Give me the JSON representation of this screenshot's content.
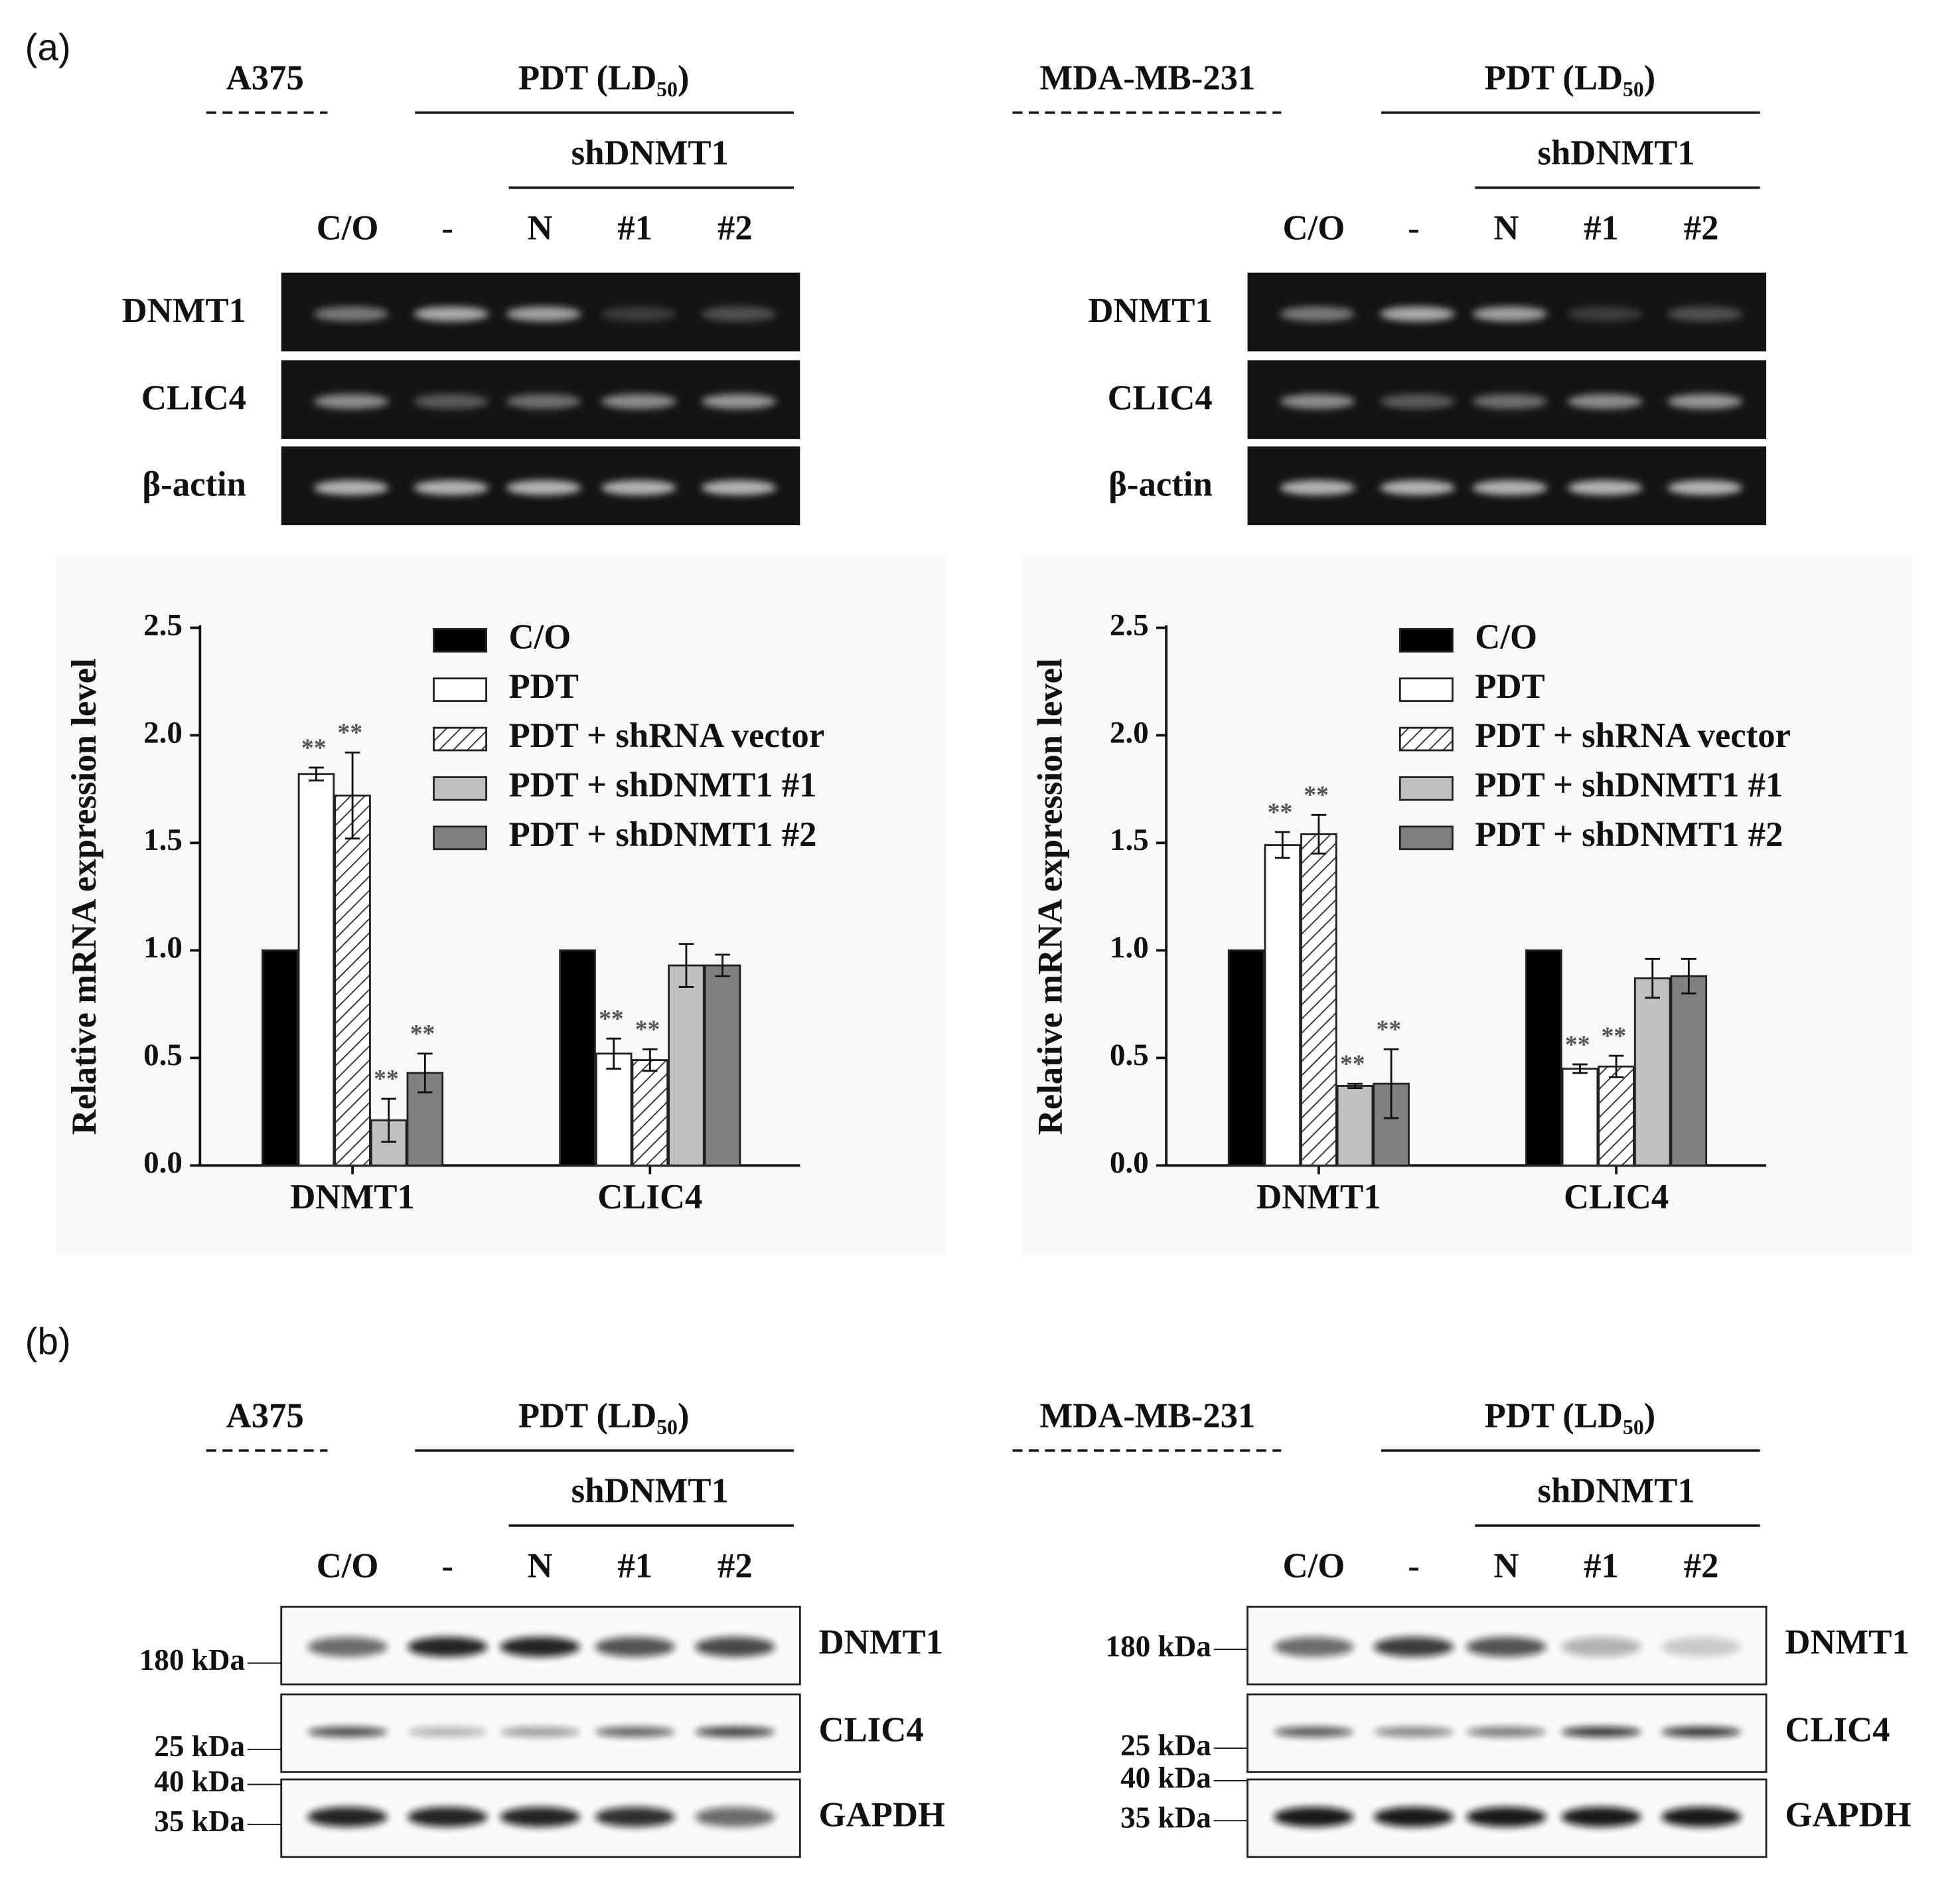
{
  "panel_labels": [
    "(a)",
    "(b)"
  ],
  "gels": [
    {
      "cell_line": "A375",
      "treatment": "PDT (LD₅₀)",
      "knockdown": "shDNMT1",
      "lanes": [
        "C/O",
        "-",
        "N",
        "#1",
        "#2"
      ],
      "rows": [
        "DNMT1",
        "CLIC4",
        "β-actin"
      ]
    },
    {
      "cell_line": "MDA-MB-231",
      "treatment": "PDT (LD₅₀)",
      "knockdown": "shDNMT1",
      "lanes": [
        "C/O",
        "-",
        "N",
        "#1",
        "#2"
      ],
      "rows": [
        "DNMT1",
        "CLIC4",
        "β-actin"
      ]
    }
  ],
  "blots": [
    {
      "cell_line": "A375",
      "treatment": "PDT (LD₅₀)",
      "knockdown": "shDNMT1",
      "lanes": [
        "C/O",
        "-",
        "N",
        "#1",
        "#2"
      ],
      "rows": [
        "DNMT1",
        "CLIC4",
        "GAPDH"
      ],
      "markers": [
        "180 kDa",
        "25 kDa",
        "40 kDa",
        "35 kDa"
      ]
    },
    {
      "cell_line": "MDA-MB-231",
      "treatment": "PDT (LD₅₀)",
      "knockdown": "shDNMT1",
      "lanes": [
        "C/O",
        "-",
        "N",
        "#1",
        "#2"
      ],
      "rows": [
        "DNMT1",
        "CLIC4",
        "GAPDH"
      ],
      "markers": [
        "180 kDa",
        "25 kDa",
        "40 kDa",
        "35 kDa"
      ]
    }
  ],
  "chart_data": [
    {
      "type": "bar",
      "ylabel": "Relative mRNA expression level",
      "categories": [
        "DNMT1",
        "CLIC4"
      ],
      "ylim": [
        0,
        2.5
      ],
      "yticks": [
        {
          "value": 0,
          "label": "0.0"
        },
        {
          "value": 0.5,
          "label": "0.5"
        },
        {
          "value": 1,
          "label": "1.0"
        },
        {
          "value": 1.5,
          "label": "1.5"
        },
        {
          "value": 2,
          "label": "2.0"
        },
        {
          "value": 2.5,
          "label": "2.5"
        }
      ],
      "series": [
        {
          "name": "C/O",
          "color": "#000000",
          "values": [
            1.0,
            1.0
          ]
        },
        {
          "name": "PDT",
          "color": "#ffffff",
          "values": [
            1.82,
            0.52
          ],
          "errors": [
            0.03,
            0.07
          ],
          "significance": [
            "**",
            "**"
          ]
        },
        {
          "name": "PDT + shRNA vector",
          "color": "#ffffff",
          "hatch": true,
          "values": [
            1.72,
            0.49
          ],
          "errors": [
            0.2,
            0.05
          ],
          "significance": [
            "**",
            "**"
          ]
        },
        {
          "name": "PDT + shDNMT1 #1",
          "color": "#c0c0c0",
          "values": [
            0.21,
            0.93
          ],
          "errors": [
            0.1,
            0.1
          ],
          "significance": [
            "**",
            null
          ]
        },
        {
          "name": "PDT + shDNMT1 #2",
          "color": "#808080",
          "values": [
            0.43,
            0.93
          ],
          "errors": [
            0.09,
            0.05
          ],
          "significance": [
            "**",
            null
          ]
        }
      ]
    },
    {
      "type": "bar",
      "ylabel": "Relative mRNA expression level",
      "categories": [
        "DNMT1",
        "CLIC4"
      ],
      "ylim": [
        0,
        2.5
      ],
      "yticks": [
        {
          "value": 0,
          "label": "0.0"
        },
        {
          "value": 0.5,
          "label": "0.5"
        },
        {
          "value": 1,
          "label": "1.0"
        },
        {
          "value": 1.5,
          "label": "1.5"
        },
        {
          "value": 2,
          "label": "2.0"
        },
        {
          "value": 2.5,
          "label": "2.5"
        }
      ],
      "series": [
        {
          "name": "C/O",
          "color": "#000000",
          "values": [
            1.0,
            1.0
          ]
        },
        {
          "name": "PDT",
          "color": "#ffffff",
          "values": [
            1.49,
            0.45
          ],
          "errors": [
            0.06,
            0.02
          ],
          "significance": [
            "**",
            "**"
          ]
        },
        {
          "name": "PDT + shRNA vector",
          "color": "#ffffff",
          "hatch": true,
          "values": [
            1.54,
            0.46
          ],
          "errors": [
            0.09,
            0.05
          ],
          "significance": [
            "**",
            "**"
          ]
        },
        {
          "name": "PDT + shDNMT1 #1",
          "color": "#c0c0c0",
          "values": [
            0.37,
            0.87
          ],
          "errors": [
            0.01,
            0.09
          ],
          "significance": [
            "**",
            null
          ]
        },
        {
          "name": "PDT + shDNMT1 #2",
          "color": "#808080",
          "values": [
            0.38,
            0.88
          ],
          "errors": [
            0.16,
            0.08
          ],
          "significance": [
            "**",
            null
          ]
        }
      ]
    }
  ]
}
